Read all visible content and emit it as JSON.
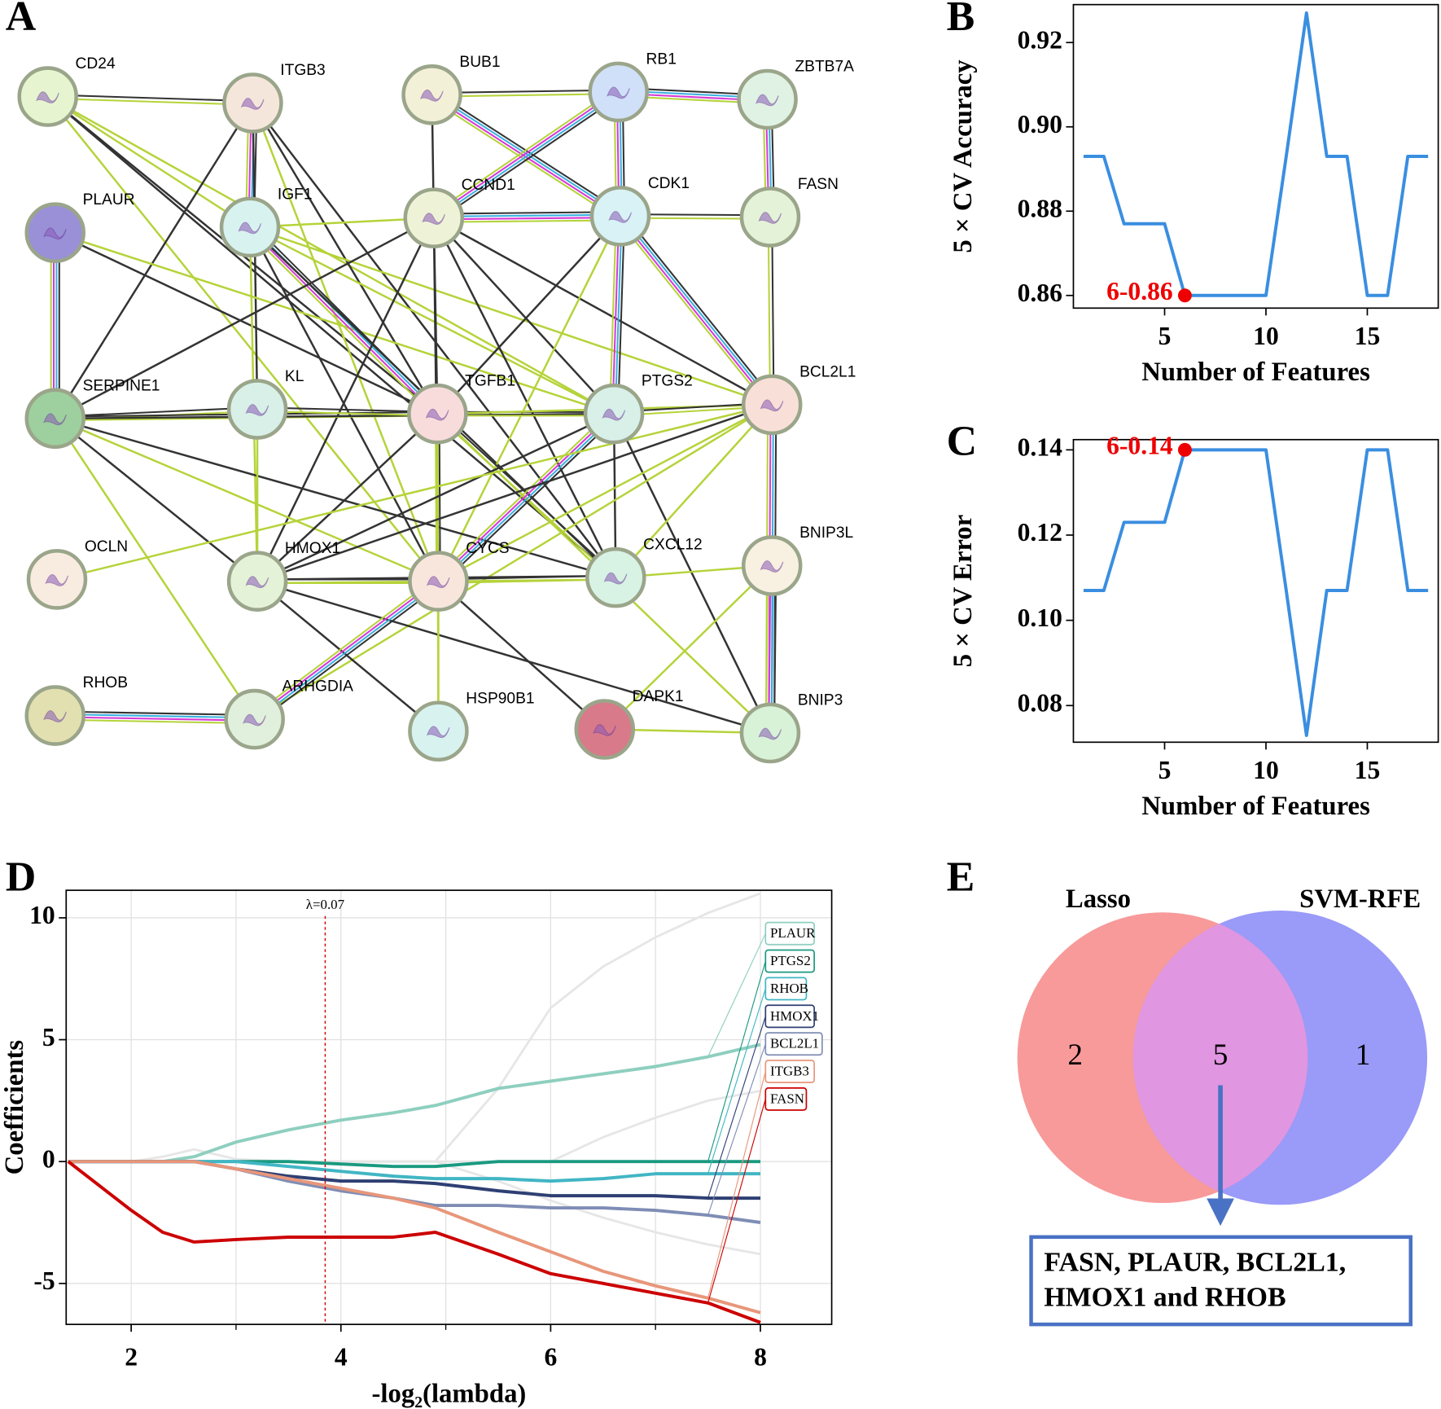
{
  "network": {
    "panel": "A",
    "nodes": [
      {
        "name": "CD24",
        "color": "#e6f5d0"
      },
      {
        "name": "ITGB3",
        "color": "#f5e6dc"
      },
      {
        "name": "BUB1",
        "color": "#f3f0d8"
      },
      {
        "name": "RB1",
        "color": "#cfe0f8"
      },
      {
        "name": "ZBTB7A",
        "color": "#e0f2e4"
      },
      {
        "name": "PLAUR",
        "color": "#9a90d8"
      },
      {
        "name": "IGF1",
        "color": "#d8f2f0"
      },
      {
        "name": "CCND1",
        "color": "#eef3d8"
      },
      {
        "name": "CDK1",
        "color": "#d8f2f5"
      },
      {
        "name": "FASN",
        "color": "#e4f3d8"
      },
      {
        "name": "SERPINE1",
        "color": "#9ecf9e"
      },
      {
        "name": "KL",
        "color": "#d8f0e8"
      },
      {
        "name": "TGFB1",
        "color": "#f8dcdc"
      },
      {
        "name": "PTGS2",
        "color": "#d8f0e8"
      },
      {
        "name": "BCL2L1",
        "color": "#f8e0d8"
      },
      {
        "name": "OCLN",
        "color": "#f8ebe0"
      },
      {
        "name": "HMOX1",
        "color": "#e4f2d8"
      },
      {
        "name": "CYCS",
        "color": "#f8e6dc"
      },
      {
        "name": "CXCL12",
        "color": "#d8f2e4"
      },
      {
        "name": "BNIP3L",
        "color": "#f8f0e0"
      },
      {
        "name": "RHOB",
        "color": "#e2e0b0"
      },
      {
        "name": "ARHGDIA",
        "color": "#e0f0dc"
      },
      {
        "name": "HSP90B1",
        "color": "#d8f2f0"
      },
      {
        "name": "DAPK1",
        "color": "#d87a8a"
      },
      {
        "name": "BNIP3",
        "color": "#d8f2d8"
      }
    ]
  },
  "chart_data": [
    {
      "panel": "B",
      "type": "line",
      "x": [
        1,
        2,
        3,
        4,
        5,
        6,
        7,
        8,
        9,
        10,
        11,
        12,
        13,
        14,
        15,
        16,
        17,
        18
      ],
      "values": [
        0.893,
        0.893,
        0.877,
        0.877,
        0.877,
        0.86,
        0.86,
        0.86,
        0.86,
        0.86,
        0.893,
        0.927,
        0.893,
        0.893,
        0.86,
        0.86,
        0.893,
        0.893
      ],
      "color": "#3a8ee0",
      "xlim": [
        0.5,
        18.5
      ],
      "xticks": [
        5,
        10,
        15
      ],
      "ylim": [
        0.857,
        0.929
      ],
      "yticks": [
        0.86,
        0.88,
        {
          "value": 0.9,
          "label": "0.90"
        },
        0.92
      ],
      "xlabel": "Number of Features",
      "ylabel": "5 × CV Accuracy",
      "highlight": {
        "x": 6,
        "y": 0.86,
        "label": "6-0.86",
        "color": "#ee0000"
      }
    },
    {
      "panel": "C",
      "type": "line",
      "x": [
        1,
        2,
        3,
        4,
        5,
        6,
        7,
        8,
        9,
        10,
        11,
        12,
        13,
        14,
        15,
        16,
        17,
        18
      ],
      "values": [
        0.107,
        0.107,
        0.123,
        0.123,
        0.123,
        0.14,
        0.14,
        0.14,
        0.14,
        0.14,
        0.107,
        0.073,
        0.107,
        0.107,
        0.14,
        0.14,
        0.107,
        0.107
      ],
      "color": "#3a8ee0",
      "xlim": [
        0.5,
        18.5
      ],
      "xticks": [
        5,
        10,
        15
      ],
      "ylim": [
        0.0714,
        0.1424
      ],
      "yticks": [
        0.08,
        {
          "value": 0.1,
          "label": "0.10"
        },
        0.12,
        0.14
      ],
      "xlabel": "Number of Features",
      "ylabel": "5 × CV Error",
      "highlight": {
        "x": 6,
        "y": 0.14,
        "label": "6-0.14",
        "color": "#ee0000"
      }
    },
    {
      "panel": "D",
      "type": "line",
      "x": [
        1.4,
        2.0,
        2.3,
        2.6,
        3.0,
        3.5,
        4.0,
        4.5,
        4.9,
        5.5,
        6.0,
        6.5,
        7.0,
        7.5,
        8.0
      ],
      "series": [
        {
          "color": "#e6e6e6",
          "values": [
            0,
            0,
            0,
            0,
            0,
            0,
            0,
            0,
            0,
            3,
            6.3,
            8,
            9.2,
            10.2,
            11
          ]
        },
        {
          "color": "#e6e6e6",
          "values": [
            0,
            0,
            0.2,
            0.5,
            0.1,
            0,
            0,
            0,
            0,
            0,
            0,
            1,
            1.8,
            2.5,
            2.9
          ]
        },
        {
          "color": "#e6e6e6",
          "values": [
            0,
            0,
            0,
            0,
            0,
            0,
            0,
            0,
            0,
            -0.8,
            -1.6,
            -2.3,
            -2.9,
            -3.4,
            -3.8
          ]
        },
        {
          "name": "PLAUR",
          "color": "#8ecfbf",
          "values": [
            0,
            0,
            0,
            0.2,
            0.8,
            1.3,
            1.7,
            2.0,
            2.3,
            3.0,
            3.3,
            3.6,
            3.9,
            4.3,
            4.8
          ]
        },
        {
          "name": "PTGS2",
          "color": "#1a9a80",
          "values": [
            0,
            0,
            0,
            0,
            0,
            0,
            -0.1,
            -0.2,
            -0.2,
            0,
            0,
            0,
            0,
            0,
            0
          ]
        },
        {
          "name": "RHOB",
          "color": "#41b6c4",
          "values": [
            0,
            0,
            0,
            0,
            0,
            -0.2,
            -0.4,
            -0.6,
            -0.7,
            -0.7,
            -0.8,
            -0.7,
            -0.5,
            -0.5,
            -0.5
          ]
        },
        {
          "name": "HMOX1",
          "color": "#2e3f73",
          "values": [
            0,
            0,
            0,
            0,
            -0.3,
            -0.6,
            -0.8,
            -0.8,
            -0.9,
            -1.2,
            -1.4,
            -1.4,
            -1.4,
            -1.5,
            -1.5
          ]
        },
        {
          "name": "BCL2L1",
          "color": "#7f8db5",
          "values": [
            0,
            0,
            0,
            0,
            -0.3,
            -0.8,
            -1.2,
            -1.5,
            -1.8,
            -1.8,
            -1.9,
            -1.9,
            -2.0,
            -2.2,
            -2.5
          ]
        },
        {
          "name": "ITGB3",
          "color": "#e8967a",
          "values": [
            0,
            0,
            0,
            0,
            -0.3,
            -0.7,
            -1.1,
            -1.5,
            -1.9,
            -2.9,
            -3.7,
            -4.5,
            -5.1,
            -5.6,
            -6.2
          ]
        },
        {
          "name": "FASN",
          "color": "#cc0000",
          "values": [
            0,
            -2.0,
            -2.9,
            -3.3,
            -3.2,
            -3.1,
            -3.1,
            -3.1,
            -2.9,
            -3.8,
            -4.6,
            -5.0,
            -5.4,
            -5.8,
            -6.6
          ]
        }
      ],
      "xlim": [
        1.38,
        8.68
      ],
      "xticks": [
        2,
        4,
        6,
        8
      ],
      "minor_xticks": [
        3,
        5,
        7
      ],
      "ylim": [
        -6.68,
        11.13
      ],
      "yticks": [
        -5,
        0,
        5,
        10
      ],
      "grid": true,
      "xlabel": "-log₂(lambda)",
      "ylabel": "Coefficients",
      "vline": {
        "x": 3.85,
        "label": "λ=0.07",
        "color": "#cc0000"
      }
    },
    {
      "panel": "E",
      "type": "venn",
      "sets": [
        {
          "name": "Lasso",
          "color": "#f89a9a"
        },
        {
          "name": "SVM-RFE",
          "color": "#9a9af8"
        }
      ],
      "overlap_color": "#e096e0",
      "values": [
        2,
        5,
        1
      ],
      "intersection_label": [
        "FASN, PLAUR, BCL2L1,",
        "HMOX1 and RHOB"
      ]
    }
  ]
}
